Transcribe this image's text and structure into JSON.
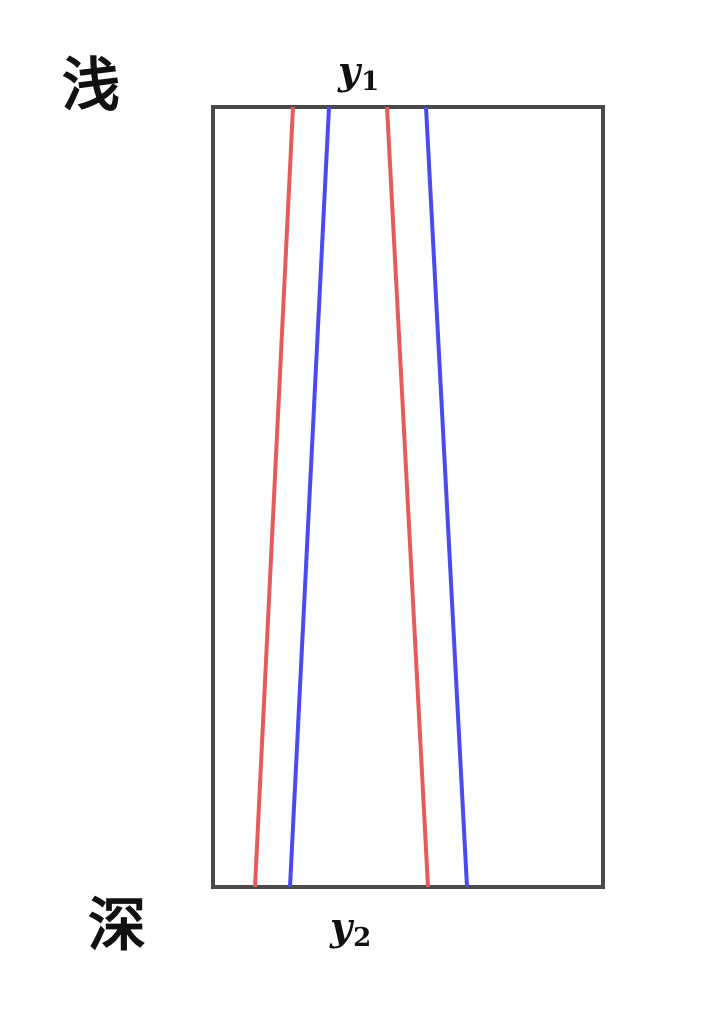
{
  "labels": {
    "top_left": "浅",
    "bottom_left": "深",
    "top_var": "y",
    "top_sub": "1",
    "bottom_var": "y",
    "bottom_sub": "2"
  },
  "colors": {
    "frame": "#4a4a4a",
    "red_line": "#e85a5a",
    "blue_line": "#4a4aee",
    "text": "#111111"
  }
}
